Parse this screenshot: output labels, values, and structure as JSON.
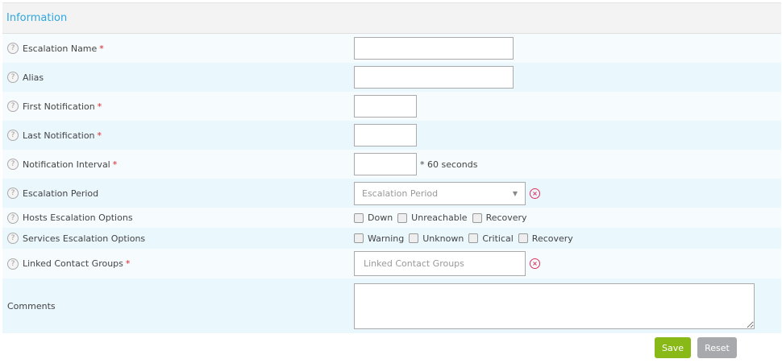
{
  "section_title": "Information",
  "fields": {
    "name": {
      "label": "Escalation Name",
      "required": "*"
    },
    "alias": {
      "label": "Alias"
    },
    "first": {
      "label": "First Notification",
      "required": "*"
    },
    "last": {
      "label": "Last Notification",
      "required": "*"
    },
    "interval": {
      "label": "Notification Interval",
      "required": "*",
      "suffix": "* 60 seconds"
    },
    "period": {
      "label": "Escalation Period",
      "placeholder": "Escalation Period"
    },
    "hosts": {
      "label": "Hosts Escalation Options",
      "options": [
        "Down",
        "Unreachable",
        "Recovery"
      ]
    },
    "services": {
      "label": "Services Escalation Options",
      "options": [
        "Warning",
        "Unknown",
        "Critical",
        "Recovery"
      ]
    },
    "groups": {
      "label": "Linked Contact Groups",
      "required": "*",
      "placeholder": "Linked Contact Groups"
    },
    "comments": {
      "label": "Comments"
    }
  },
  "help_glyph": "?",
  "clear_glyph": "×",
  "buttons": {
    "save": "Save",
    "reset": "Reset"
  },
  "colors": {
    "accent": "#2ea7e0",
    "save": "#88b917",
    "reset": "#a7a9ac",
    "required": "#e0202a"
  }
}
